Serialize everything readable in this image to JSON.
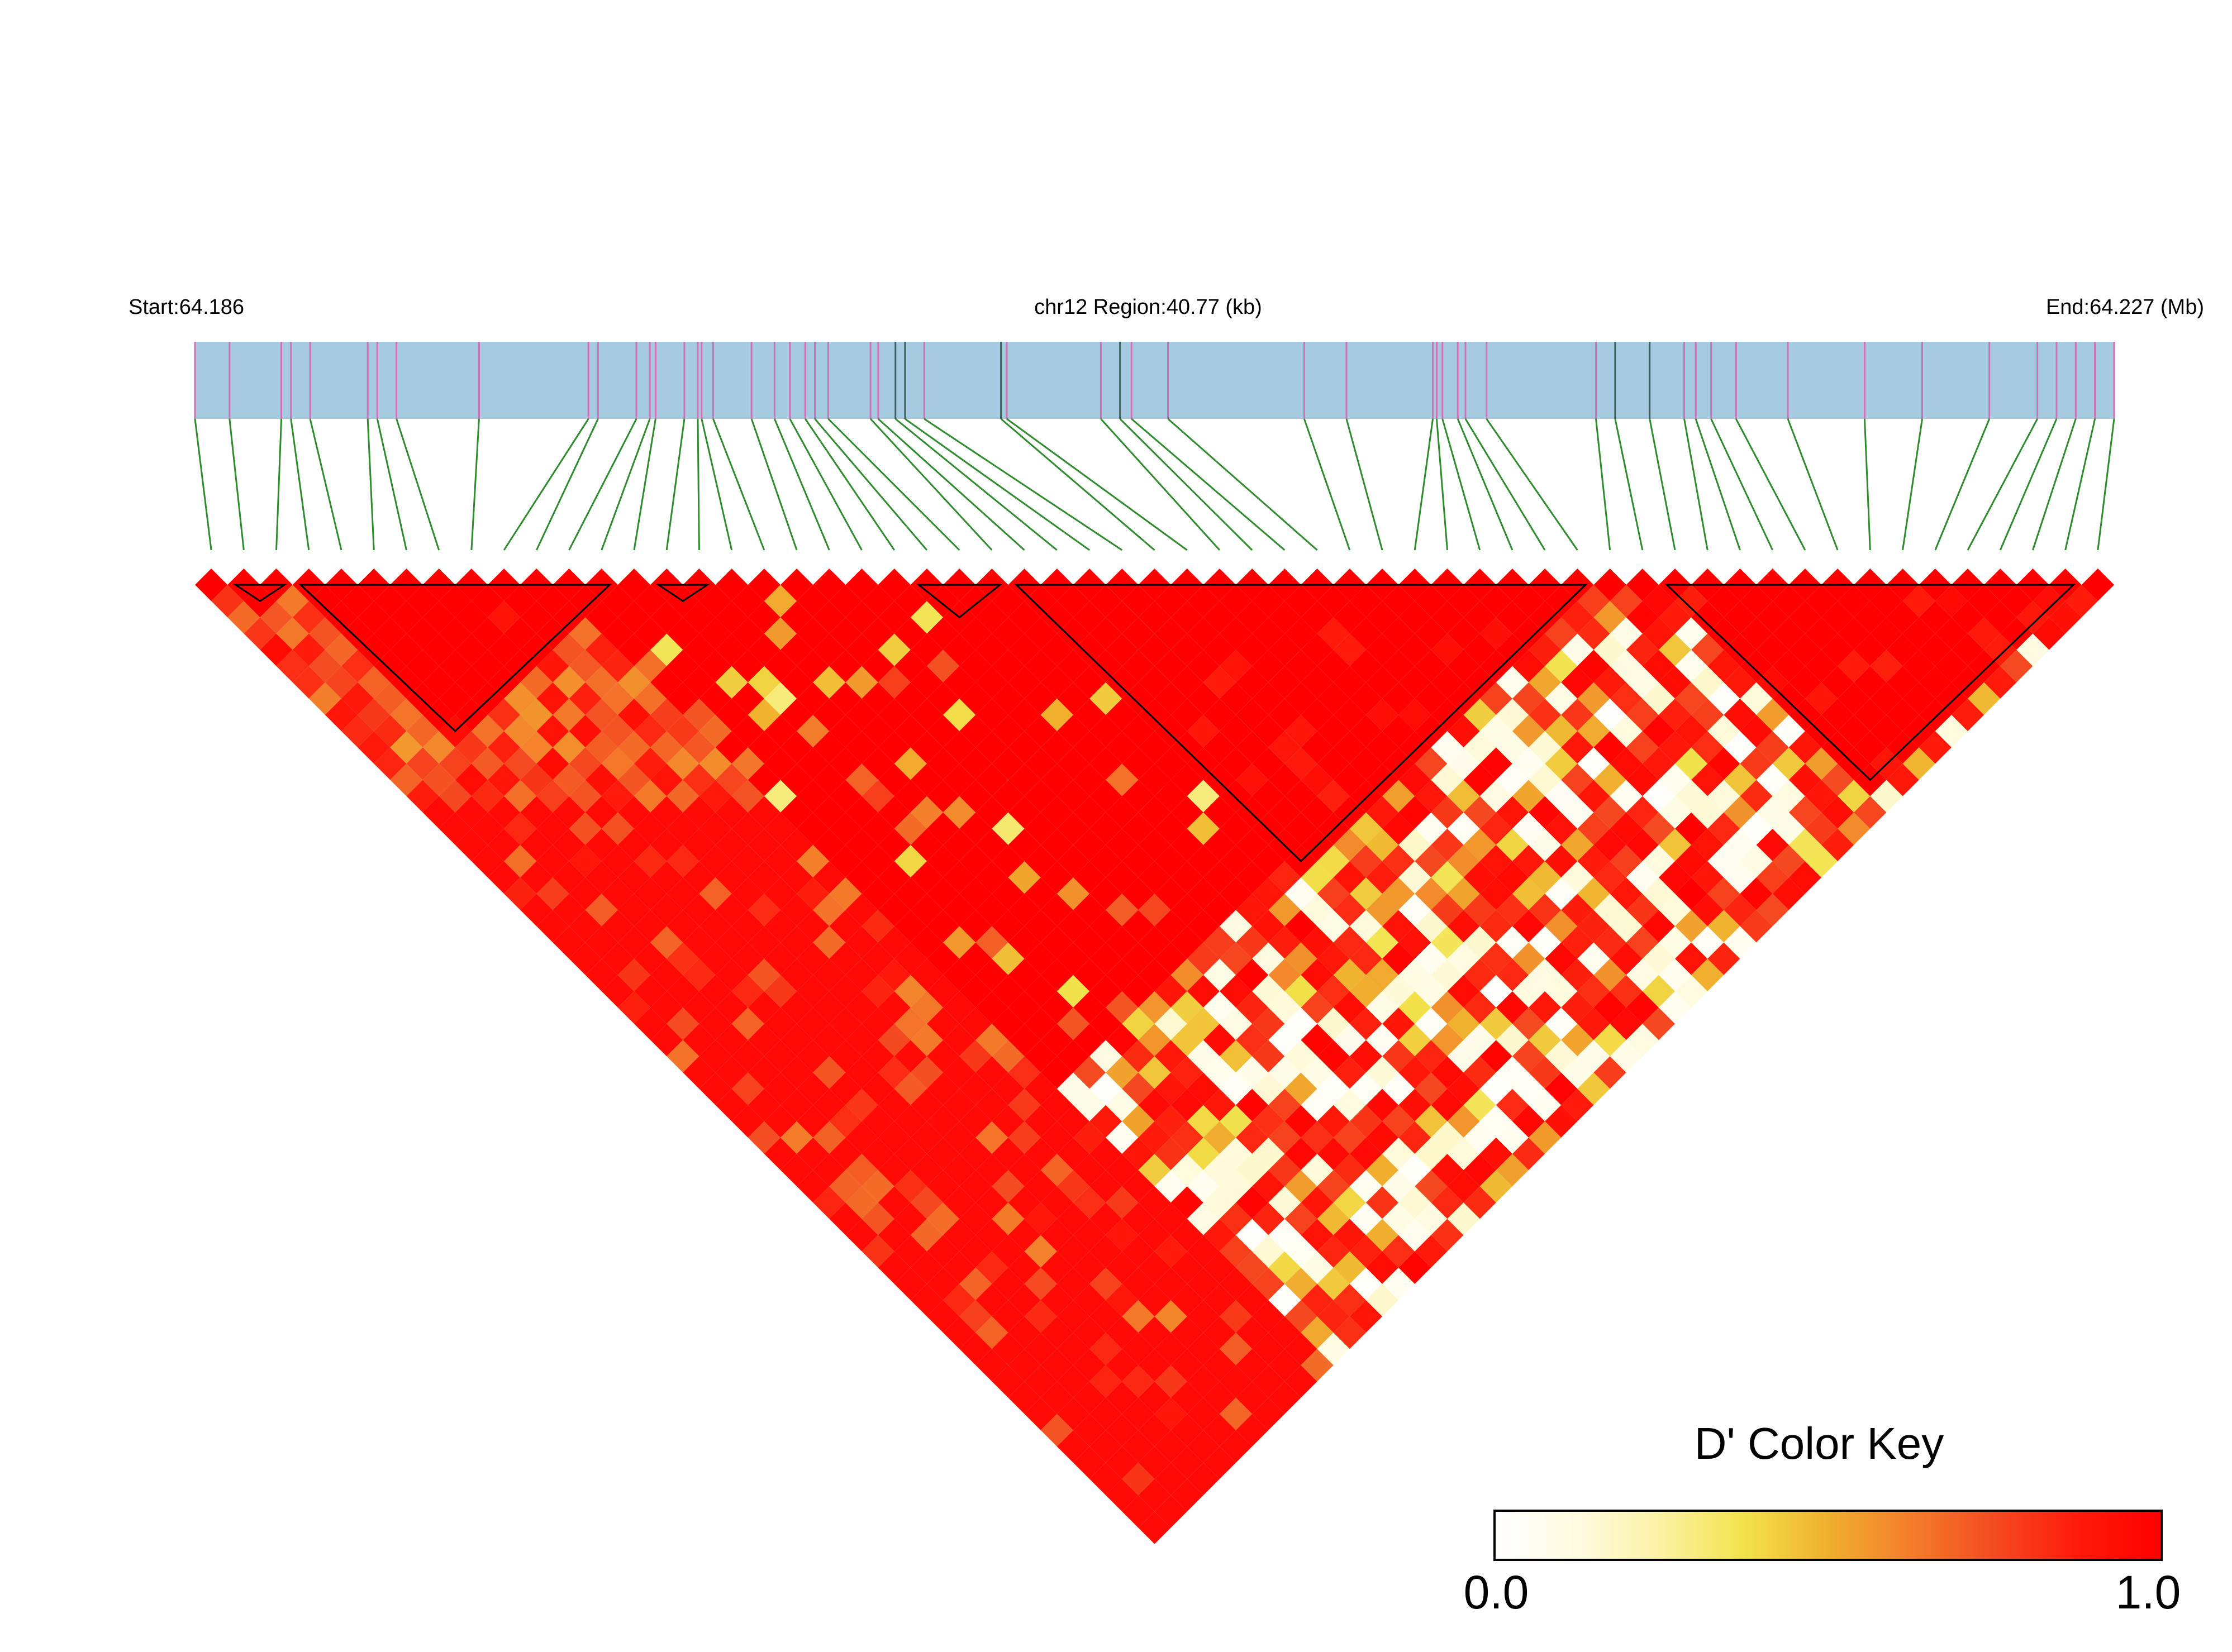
{
  "header": {
    "start_label": "Start:64.186",
    "region_label": "chr12 Region:40.77 (kb)",
    "end_label": "End:64.227 (Mb)"
  },
  "colors": {
    "gene_bar": "#a6cbe0",
    "snp_tick": "#d26fb6",
    "snp_tick_dark": "#3a5f5a",
    "connector": "#2e8b2e",
    "block_outline": "#000000"
  },
  "legend": {
    "title": "D' Color Key",
    "min_label": "0.0",
    "max_label": "1.0",
    "gradient": [
      "#ffffff",
      "#fffbe0",
      "#fbf2a4",
      "#f2e24a",
      "#f0b02e",
      "#f47d2b",
      "#f44a21",
      "#ff1a0a",
      "#ff0000"
    ]
  },
  "chart_data": {
    "type": "heatmap",
    "description_of_measure": "D'",
    "region_start_mb": 64.186,
    "region_end_mb": 64.227,
    "region_length_kb": 40.77,
    "snp_count": 59,
    "snp_positions_frac": [
      0.0,
      0.018,
      0.045,
      0.05,
      0.06,
      0.09,
      0.095,
      0.105,
      0.148,
      0.205,
      0.21,
      0.23,
      0.237,
      0.24,
      0.255,
      0.262,
      0.264,
      0.27,
      0.29,
      0.302,
      0.31,
      0.318,
      0.323,
      0.33,
      0.352,
      0.356,
      0.365,
      0.37,
      0.38,
      0.42,
      0.423,
      0.472,
      0.482,
      0.488,
      0.507,
      0.578,
      0.6,
      0.645,
      0.647,
      0.65,
      0.658,
      0.662,
      0.673,
      0.73,
      0.74,
      0.758,
      0.776,
      0.782,
      0.79,
      0.803,
      0.83,
      0.87,
      0.9,
      0.935,
      0.96,
      0.97,
      0.98,
      0.99,
      1.0
    ],
    "snp_dark_ticks": [
      26,
      27,
      29,
      32,
      44,
      45
    ],
    "haplotype_blocks": [
      {
        "first_snp": 1,
        "last_snp": 2
      },
      {
        "first_snp": 3,
        "last_snp": 12
      },
      {
        "first_snp": 14,
        "last_snp": 15
      },
      {
        "first_snp": 22,
        "last_snp": 24
      },
      {
        "first_snp": 25,
        "last_snp": 42
      },
      {
        "first_snp": 45,
        "last_snp": 57
      }
    ],
    "value_range": [
      0.0,
      1.0
    ]
  }
}
